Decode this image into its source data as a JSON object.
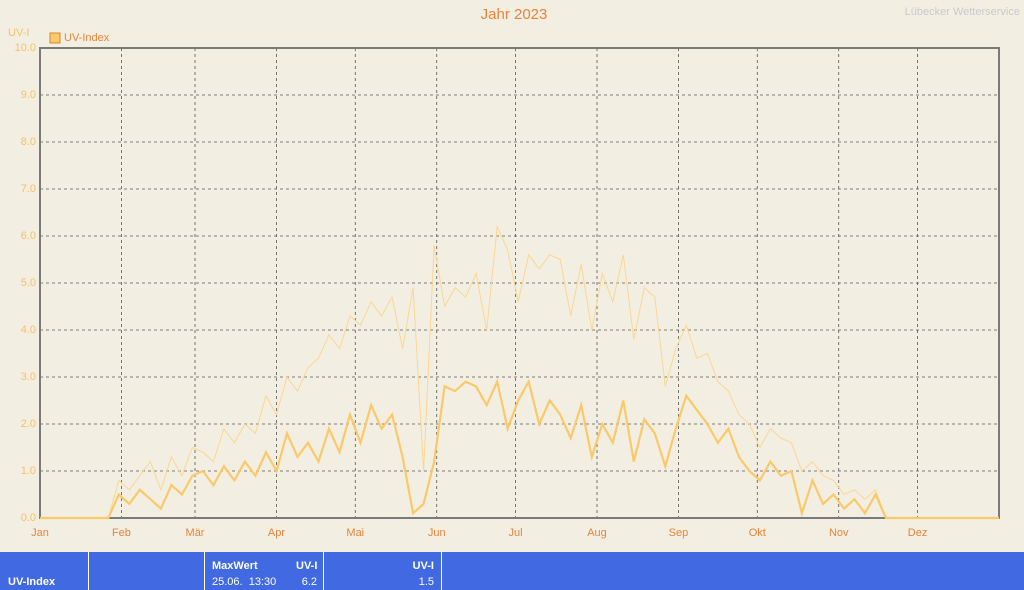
{
  "chart_data": {
    "type": "line",
    "title": "Jahr 2023",
    "watermark": "Lübecker Wetterservice",
    "y_label": "UV-I",
    "x": [
      0,
      26,
      30,
      34,
      38,
      42,
      46,
      50,
      54,
      58,
      62,
      66,
      70,
      74,
      78,
      82,
      86,
      90,
      94,
      98,
      102,
      106,
      110,
      114,
      118,
      122,
      126,
      130,
      134,
      138,
      142,
      146,
      150,
      154,
      158,
      162,
      166,
      170,
      174,
      178,
      182,
      186,
      190,
      194,
      198,
      202,
      206,
      210,
      214,
      218,
      222,
      226,
      230,
      234,
      238,
      242,
      246,
      250,
      254,
      258,
      262,
      266,
      270,
      274,
      278,
      282,
      286,
      290,
      294,
      298,
      302,
      306,
      310,
      314,
      318,
      322,
      365
    ],
    "series": [
      {
        "name": "UV-Index",
        "color": "#fbc86a",
        "values": [
          0,
          0,
          0.5,
          0.3,
          0.6,
          0.4,
          0.2,
          0.7,
          0.5,
          0.9,
          1.0,
          0.7,
          1.1,
          0.8,
          1.2,
          0.9,
          1.4,
          1.0,
          1.8,
          1.3,
          1.6,
          1.2,
          1.9,
          1.4,
          2.2,
          1.6,
          2.4,
          1.9,
          2.2,
          1.3,
          0.1,
          0.3,
          1.2,
          2.8,
          2.7,
          2.9,
          2.8,
          2.4,
          2.9,
          1.9,
          2.5,
          2.9,
          2.0,
          2.5,
          2.2,
          1.7,
          2.4,
          1.3,
          2.0,
          1.6,
          2.5,
          1.2,
          2.1,
          1.8,
          1.1,
          1.9,
          2.6,
          2.3,
          2.0,
          1.6,
          1.9,
          1.3,
          1.0,
          0.8,
          1.2,
          0.9,
          1.0,
          0.1,
          0.8,
          0.3,
          0.5,
          0.2,
          0.4,
          0.1,
          0.5,
          0.0,
          0
        ]
      },
      {
        "color": "#fcd690",
        "values": [
          0,
          0,
          0.8,
          0.6,
          0.9,
          1.2,
          0.6,
          1.3,
          0.9,
          1.5,
          1.4,
          1.2,
          1.9,
          1.6,
          2.0,
          1.8,
          2.6,
          2.2,
          3.0,
          2.7,
          3.2,
          3.4,
          3.9,
          3.6,
          4.3,
          4.1,
          4.6,
          4.3,
          4.7,
          3.6,
          4.9,
          1.0,
          5.8,
          4.5,
          4.9,
          4.7,
          5.2,
          4.0,
          6.2,
          5.7,
          4.6,
          5.6,
          5.3,
          5.6,
          5.5,
          4.3,
          5.4,
          4.0,
          5.2,
          4.6,
          5.6,
          3.8,
          4.9,
          4.7,
          2.8,
          3.6,
          4.1,
          3.4,
          3.5,
          2.9,
          2.7,
          2.2,
          2.0,
          1.5,
          1.9,
          1.7,
          1.6,
          1.0,
          1.2,
          0.9,
          0.8,
          0.5,
          0.6,
          0.4,
          0.6,
          0.0,
          0
        ]
      }
    ],
    "xlim": [
      0,
      365
    ],
    "xticks": [
      {
        "value": 0,
        "label": "Jan"
      },
      {
        "value": 31,
        "label": "Feb"
      },
      {
        "value": 59,
        "label": "Mär"
      },
      {
        "value": 90,
        "label": "Apr"
      },
      {
        "value": 120,
        "label": "Mai"
      },
      {
        "value": 151,
        "label": "Jun"
      },
      {
        "value": 181,
        "label": "Jul"
      },
      {
        "value": 212,
        "label": "Aug"
      },
      {
        "value": 243,
        "label": "Sep"
      },
      {
        "value": 273,
        "label": "Okt"
      },
      {
        "value": 304,
        "label": "Nov"
      },
      {
        "value": 334,
        "label": "Dez"
      }
    ],
    "ylim": [
      0,
      10
    ],
    "yticks": [
      {
        "value": 0,
        "label": "0.0"
      },
      {
        "value": 1,
        "label": "1.0"
      },
      {
        "value": 2,
        "label": "2.0"
      },
      {
        "value": 3,
        "label": "3.0"
      },
      {
        "value": 4,
        "label": "4.0"
      },
      {
        "value": 5,
        "label": "5.0"
      },
      {
        "value": 6,
        "label": "6.0"
      },
      {
        "value": 7,
        "label": "7.0"
      },
      {
        "value": 8,
        "label": "8.0"
      },
      {
        "value": 9,
        "label": "9.0"
      },
      {
        "value": 10,
        "label": "10.0"
      }
    ],
    "grid": true,
    "legend": "upper left"
  },
  "footer": {
    "row_label": "UV-Index",
    "max_header": "MaxWert",
    "max_unit": "UV-I",
    "max_date": "25.06.  13:30",
    "max_value": "6.2",
    "mean_unit": "UV-I",
    "mean_value": "1.5"
  }
}
